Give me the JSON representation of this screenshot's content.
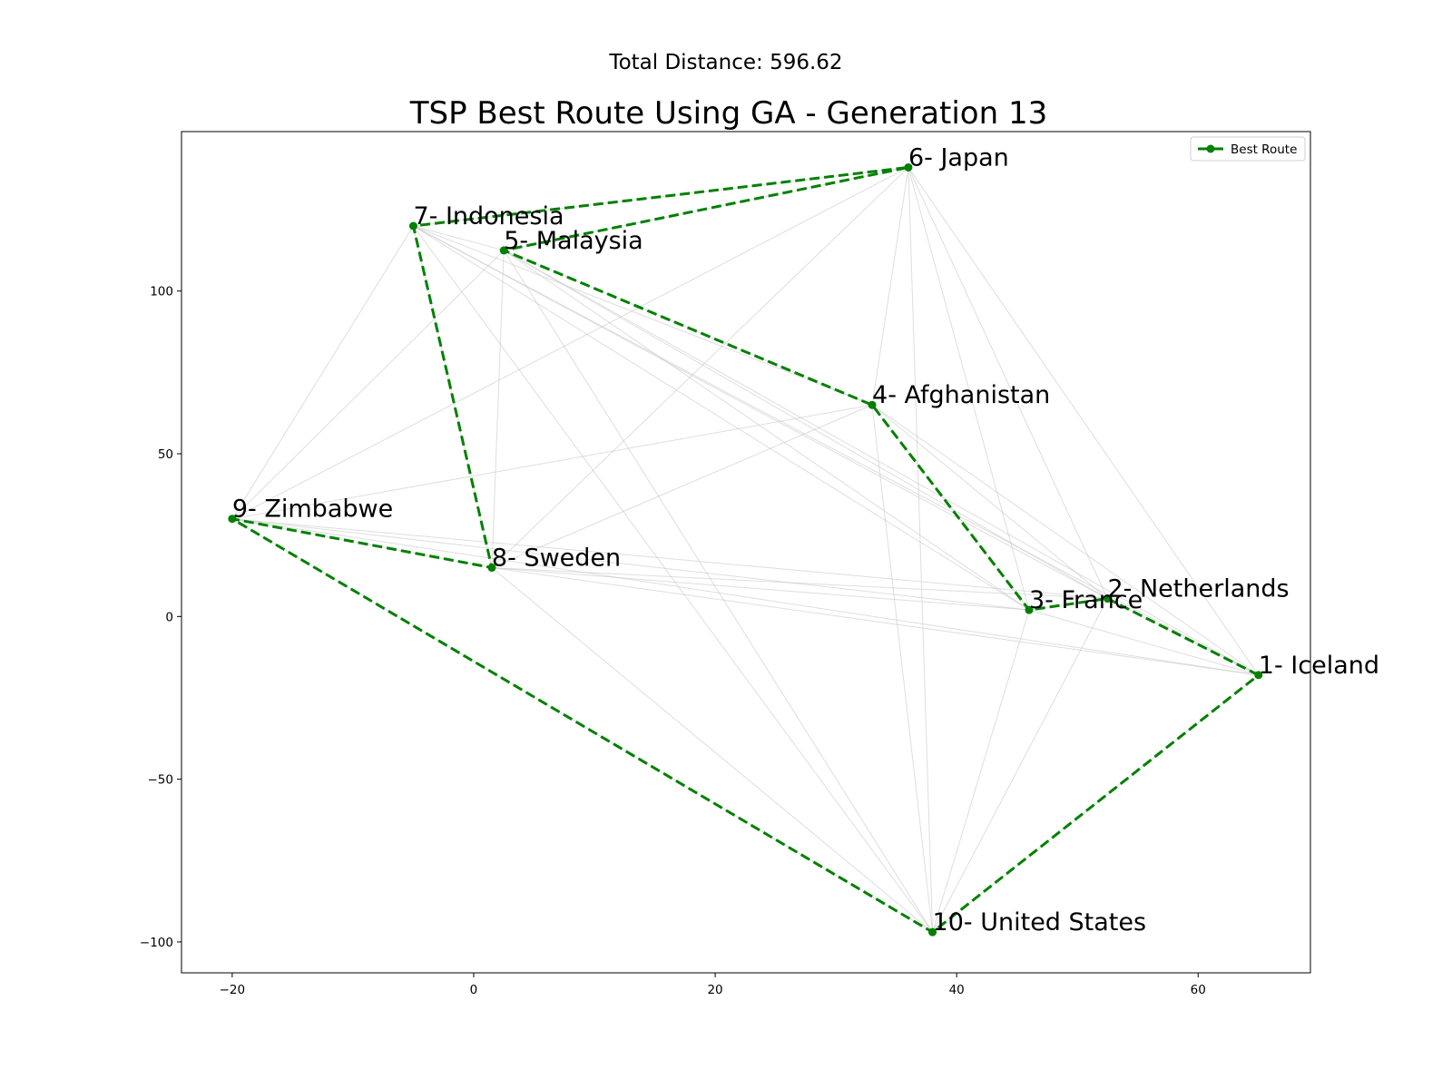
{
  "header": {
    "subtitle": "Total Distance: 596.62"
  },
  "chart_data": {
    "type": "scatter",
    "title": "TSP Best Route Using GA - Generation 13",
    "xlabel": "",
    "ylabel": "",
    "xlim": [
      -24.2,
      69.3
    ],
    "ylim": [
      -109.5,
      149
    ],
    "xticks": [
      -20,
      0,
      20,
      40,
      60
    ],
    "yticks": [
      -100,
      -50,
      0,
      50,
      100
    ],
    "grid": false,
    "legend": {
      "position": "top-right",
      "entries": [
        "Best Route"
      ]
    },
    "route_color": "#008000",
    "background_line_color": "#c8c8c8",
    "cities": [
      {
        "label": "1- Iceland",
        "x": 65,
        "y": -18
      },
      {
        "label": "2- Netherlands",
        "x": 52.5,
        "y": 5.5
      },
      {
        "label": "3- France",
        "x": 46,
        "y": 2
      },
      {
        "label": "4- Afghanistan",
        "x": 33,
        "y": 65
      },
      {
        "label": "5- Malaysia",
        "x": 2.5,
        "y": 112.5
      },
      {
        "label": "6- Japan",
        "x": 36,
        "y": 138
      },
      {
        "label": "7- Indonesia",
        "x": -5,
        "y": 120
      },
      {
        "label": "8- Sweden",
        "x": 1.5,
        "y": 15
      },
      {
        "label": "9- Zimbabwe",
        "x": -20,
        "y": 30
      },
      {
        "label": "10- United States",
        "x": 38,
        "y": -97
      }
    ],
    "best_route": [
      "1- Iceland",
      "2- Netherlands",
      "3- France",
      "4- Afghanistan",
      "5- Malaysia",
      "6- Japan",
      "7- Indonesia",
      "8- Sweden",
      "9- Zimbabwe",
      "10- United States",
      "1- Iceland"
    ]
  }
}
